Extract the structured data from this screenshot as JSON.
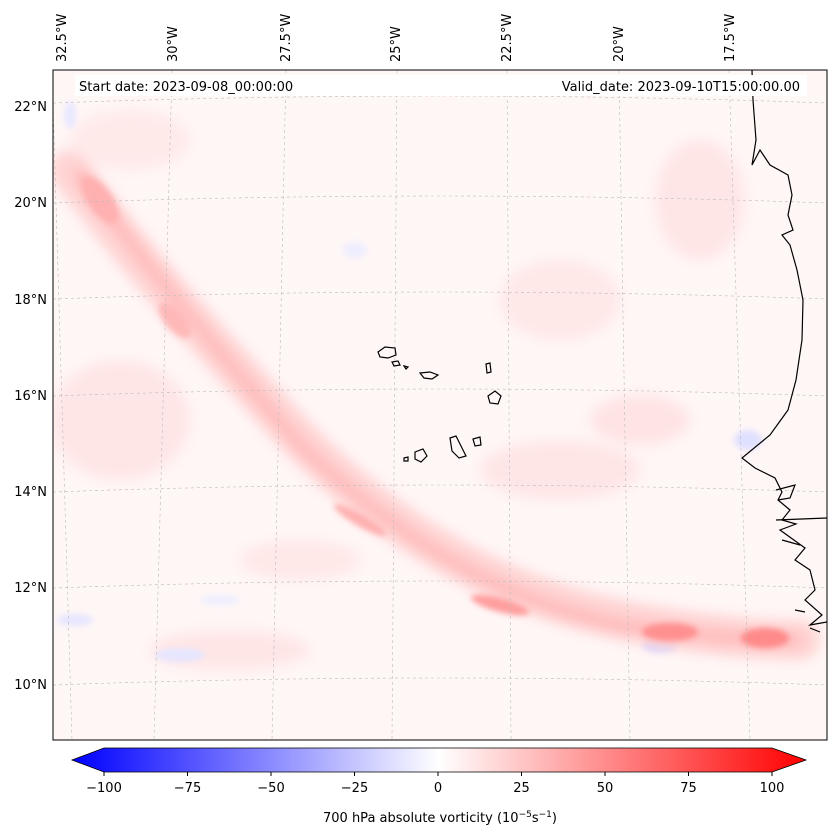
{
  "map": {
    "start_label": "Start date: 2023-09-08_00:00:00",
    "valid_label": "Valid_date: 2023-09-10T15:00:00.00",
    "lon_labels": [
      "32.5°W",
      "30°W",
      "27.5°W",
      "25°W",
      "22.5°W",
      "20°W",
      "17.5°W"
    ],
    "lat_labels": [
      "22°N",
      "20°N",
      "18°N",
      "16°N",
      "14°N",
      "12°N",
      "10°N"
    ],
    "field": "700 hPa absolute vorticity",
    "features": [
      "Cabo Verde islands",
      "West African coastline",
      "easterly wave vorticity band"
    ]
  },
  "colorbar": {
    "title": "700 hPa absolute vorticity (10",
    "exp1": "−5",
    "mid": "s",
    "exp2": "−1",
    "close": ")",
    "ticks": [
      "−100",
      "−75",
      "−50",
      "−25",
      "0",
      "25",
      "50",
      "75",
      "100"
    ],
    "range": [
      -100,
      100
    ],
    "colormap": "bwr",
    "negative_color": "#0000ff",
    "positive_color": "#ff0000"
  }
}
